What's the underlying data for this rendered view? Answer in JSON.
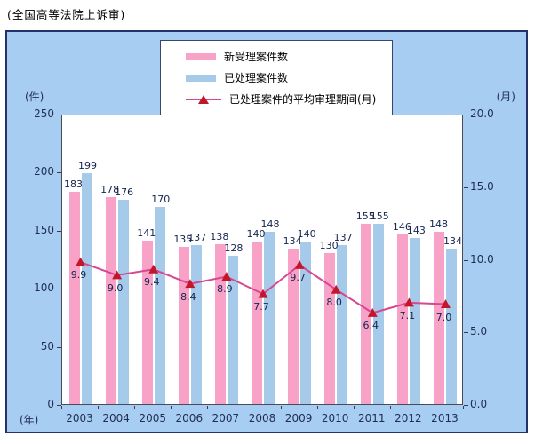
{
  "page": {
    "title": "(全国高等法院上诉审)"
  },
  "chart_data": {
    "type": "bar",
    "subtype": "grouped-bars-with-line-overlay",
    "title": "(全国高等法院上诉审)",
    "categories": [
      "2003",
      "2004",
      "2005",
      "2006",
      "2007",
      "2008",
      "2009",
      "2010",
      "2011",
      "2012",
      "2013"
    ],
    "series": [
      {
        "name": "新受理案件数",
        "type": "bar",
        "axis": "left",
        "color": "#F8A2C8",
        "values": [
          183,
          178,
          141,
          135,
          138,
          140,
          134,
          130,
          155,
          146,
          148
        ]
      },
      {
        "name": "已处理案件数",
        "type": "bar",
        "axis": "left",
        "color": "#A6CAEA",
        "values": [
          199,
          176,
          170,
          137,
          128,
          148,
          140,
          137,
          155,
          143,
          134
        ]
      },
      {
        "name": "已处理案件的平均审理期间(月)",
        "type": "line",
        "axis": "right",
        "color": "#D6478F",
        "marker": "triangle",
        "marker_color": "#C4162B",
        "values": [
          9.9,
          9.0,
          9.4,
          8.4,
          8.9,
          7.7,
          9.7,
          8.0,
          6.4,
          7.1,
          7.0
        ]
      }
    ],
    "left_axis": {
      "label": "(件)",
      "min": 0,
      "max": 250,
      "step": 50,
      "decimals": 0
    },
    "right_axis": {
      "label": "(月)",
      "min": 0,
      "max": 20,
      "step": 5,
      "decimals": 1
    },
    "x_axis": {
      "label": "(年)"
    },
    "legend_position": "top-center",
    "grid": false,
    "data_labels": true,
    "background": "#A8CDF2",
    "plot_background": "#FFFFFF"
  }
}
